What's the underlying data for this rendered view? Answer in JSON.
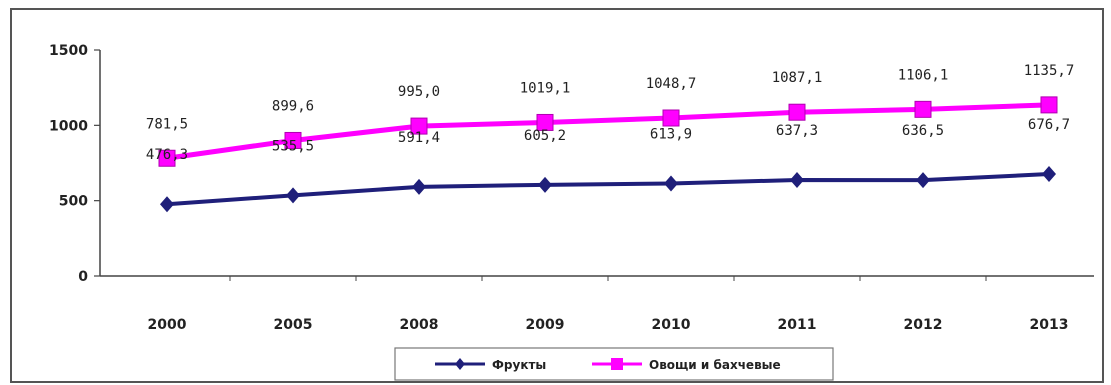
{
  "chart_data": {
    "type": "line",
    "title": "",
    "xlabel": "",
    "ylabel": "",
    "categories": [
      "2000",
      "2005",
      "2008",
      "2009",
      "2010",
      "2011",
      "2012",
      "2013"
    ],
    "ylim": [
      0,
      1500
    ],
    "yticks": [
      "0",
      "500",
      "1000",
      "1500"
    ],
    "grid": false,
    "legend_position": "bottom",
    "series": [
      {
        "name": "Фрукты",
        "values": [
          476.3,
          535.5,
          591.4,
          605.2,
          613.9,
          637.3,
          636.5,
          676.7
        ],
        "labels": [
          "476,3",
          "535,5",
          "591,4",
          "605,2",
          "613,9",
          "637,3",
          "636,5",
          "676,7"
        ],
        "color": "#1f1f7a",
        "marker": "diamond"
      },
      {
        "name": "Овощи и бахчевые",
        "values": [
          781.5,
          899.6,
          995.0,
          1019.1,
          1048.7,
          1087.1,
          1106.1,
          1135.7
        ],
        "labels": [
          "781,5",
          "899,6",
          "995,0",
          "1019,1",
          "1048,7",
          "1087,1",
          "1106,1",
          "1135,7"
        ],
        "color": "#ff00ff",
        "marker": "square"
      }
    ]
  }
}
